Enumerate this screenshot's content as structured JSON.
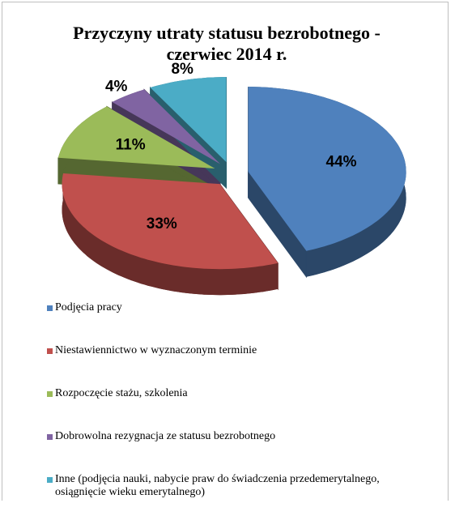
{
  "chart_data": {
    "type": "pie",
    "title": "Przyczyny utraty statusu bezrobotnego - czerwiec  2014 r.",
    "categories": [
      "Podjęcia pracy",
      "Niestawiennictwo w wyznaczonym terminie",
      "Rozpoczęcie stażu, szkolenia",
      "Dobrowolna rezygnacja ze statusu bezrobotnego",
      "Inne (podjęcia nauki, nabycie praw do świadczenia przedemerytalnego, osiągnięcie wieku emerytalnego)"
    ],
    "values": [
      44,
      33,
      11,
      4,
      8
    ],
    "value_labels": [
      "44%",
      "33%",
      "11%",
      "4%",
      "8%"
    ],
    "colors": [
      "#4f81bd",
      "#c0504d",
      "#9bbb59",
      "#8064a2",
      "#4bacc6"
    ],
    "legend": "bottom"
  }
}
